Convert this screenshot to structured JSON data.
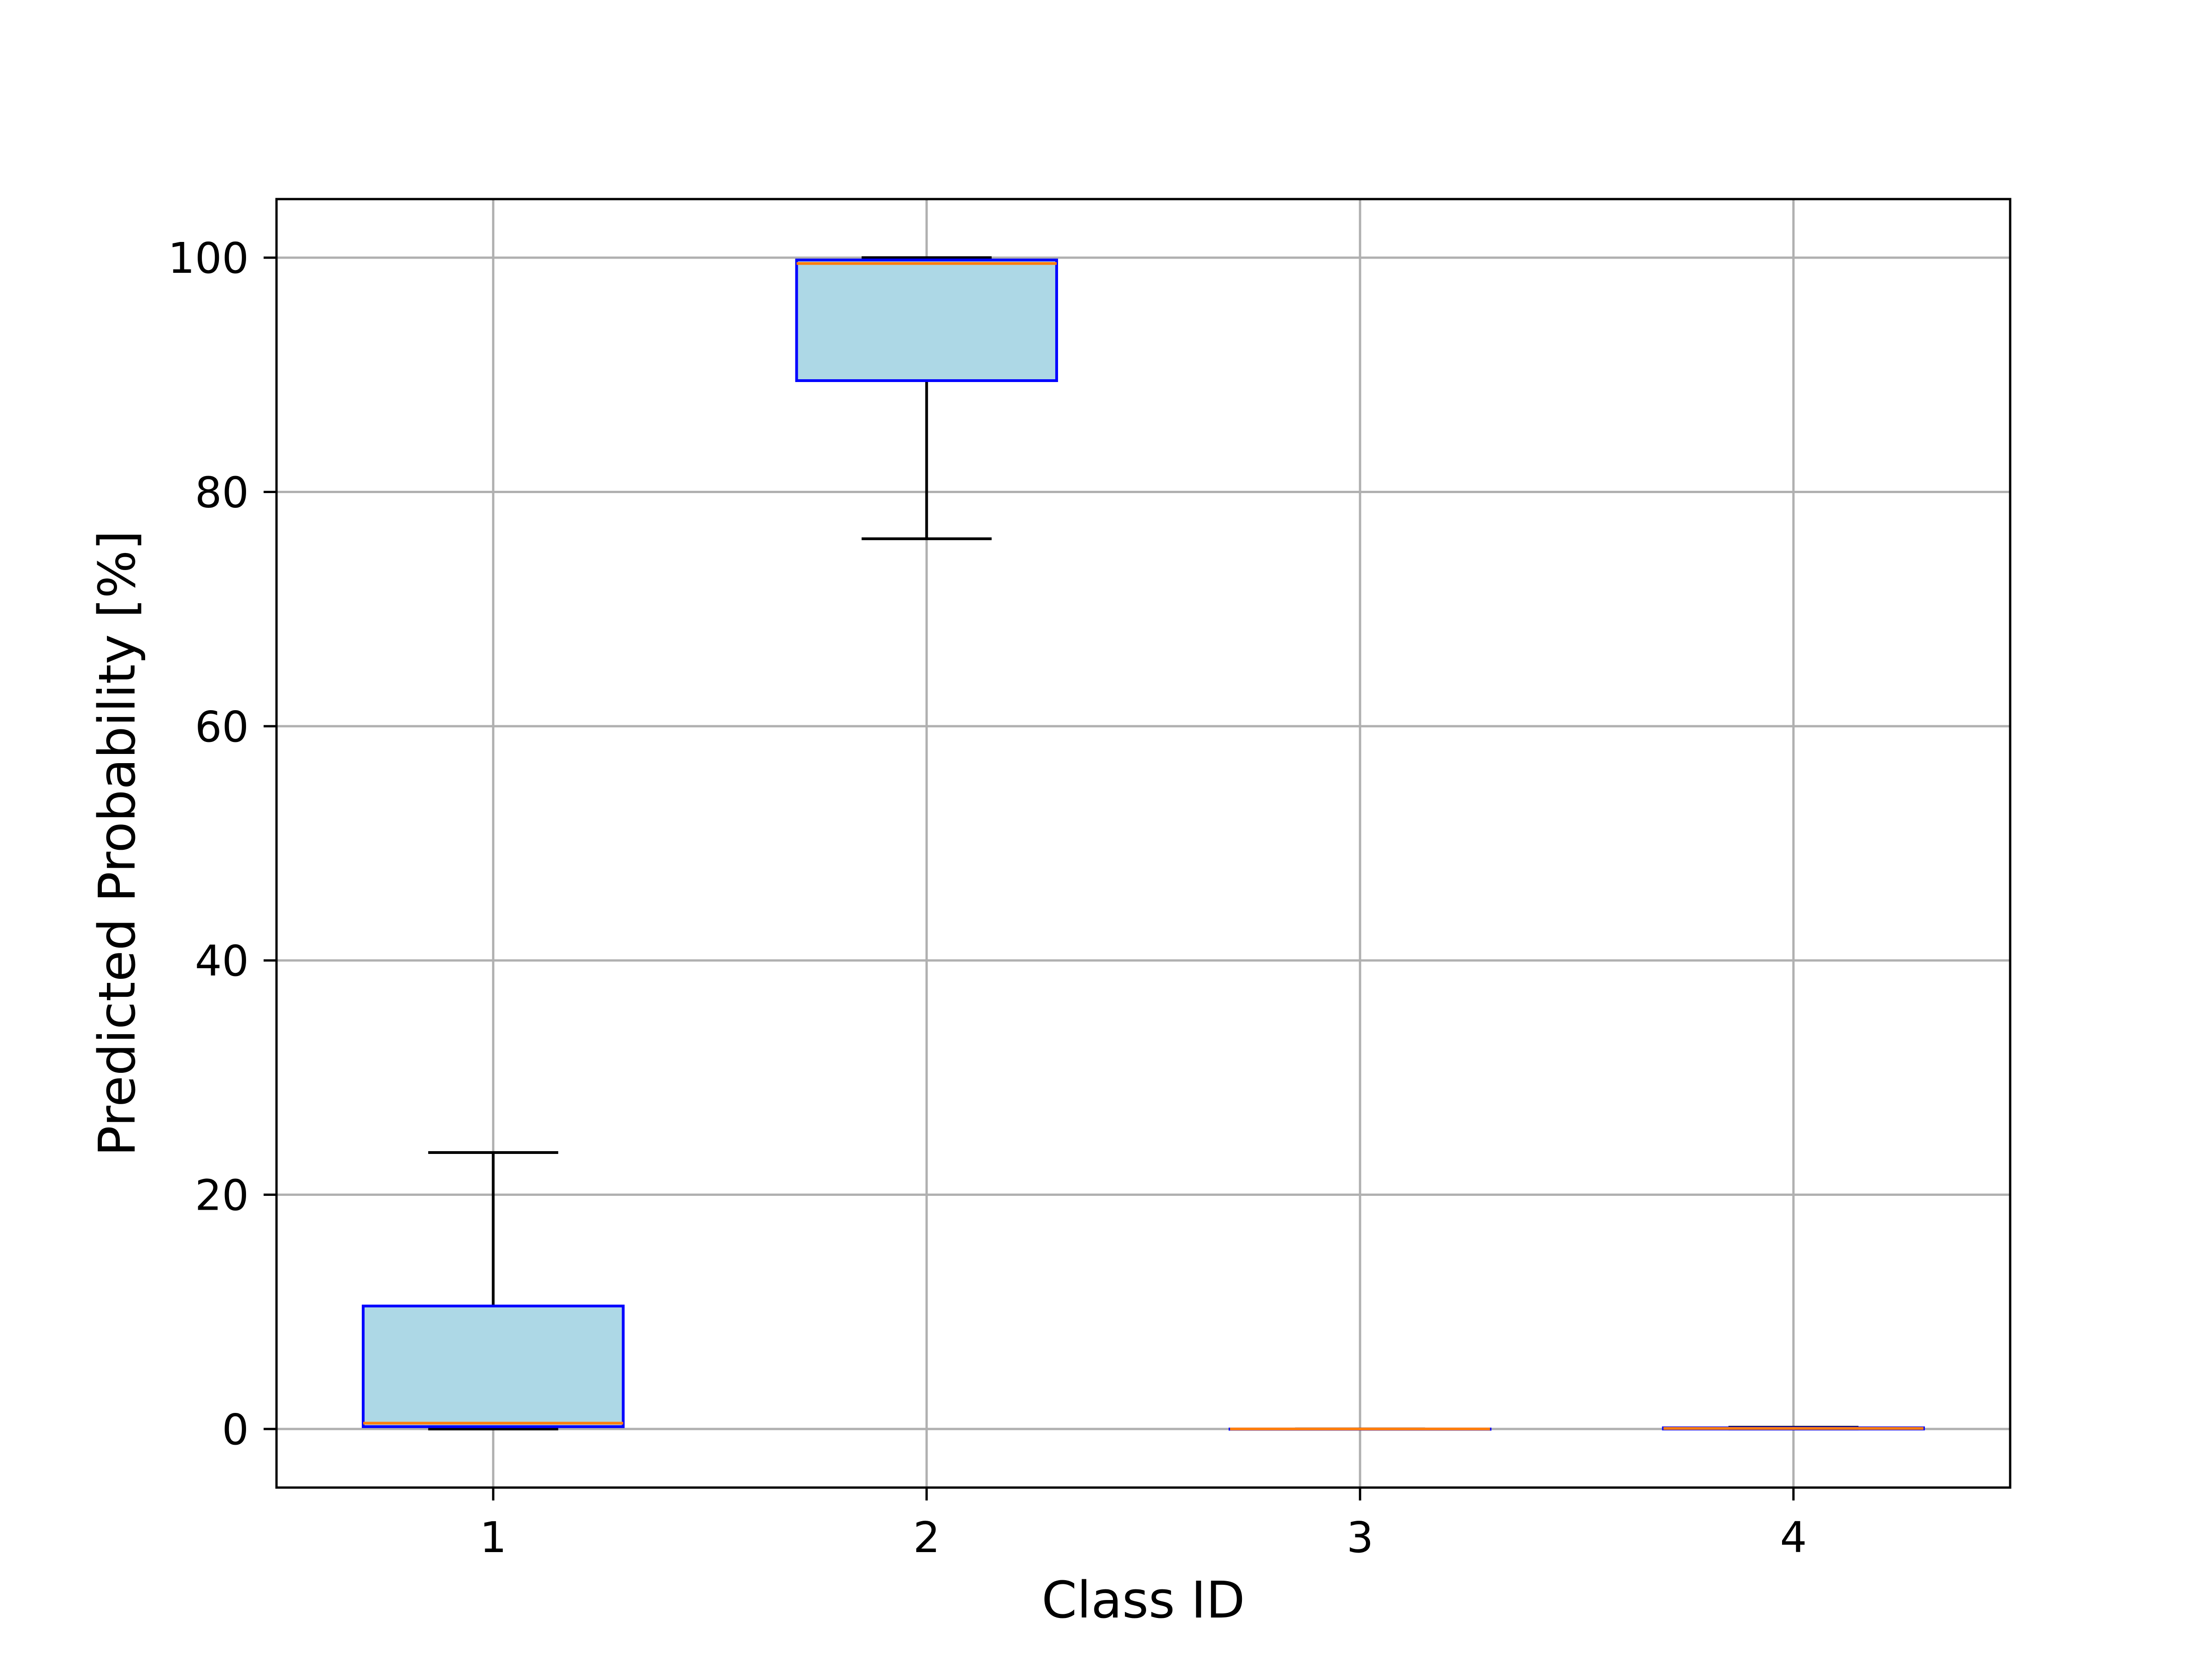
{
  "chart_data": {
    "type": "box",
    "xlabel": "Class ID",
    "ylabel": "Predicted Probability [%]",
    "categories": [
      "1",
      "2",
      "3",
      "4"
    ],
    "ylim": [
      -5,
      105
    ],
    "yticks": [
      0,
      20,
      40,
      60,
      80,
      100
    ],
    "grid": true,
    "boxes": [
      {
        "category": "1",
        "whisker_low": 0.0,
        "q1": 0.2,
        "median": 0.5,
        "q3": 10.5,
        "whisker_high": 23.6
      },
      {
        "category": "2",
        "whisker_low": 76.0,
        "q1": 89.5,
        "median": 99.5,
        "q3": 99.8,
        "whisker_high": 100.0
      },
      {
        "category": "3",
        "whisker_low": 0.0,
        "q1": 0.0,
        "median": 0.0,
        "q3": 0.0,
        "whisker_high": 0.0
      },
      {
        "category": "4",
        "whisker_low": 0.0,
        "q1": 0.0,
        "median": 0.05,
        "q3": 0.1,
        "whisker_high": 0.15
      }
    ],
    "colors": {
      "box_fill": "#add8e6",
      "box_edge": "#0000ff",
      "median": "#ff7f0e",
      "whisker": "#000000",
      "grid": "#b0b0b0"
    }
  }
}
